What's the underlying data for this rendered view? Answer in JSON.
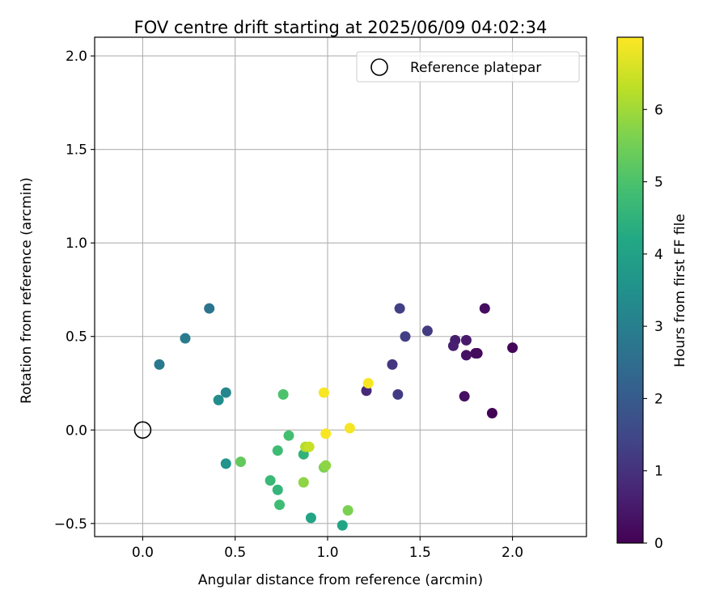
{
  "chart_data": {
    "type": "scatter",
    "title": "FOV centre drift starting at 2025/06/09 04:02:34",
    "xlabel": "Angular distance from reference (arcmin)",
    "ylabel": "Rotation from reference (arcmin)",
    "xlim": [
      -0.26,
      2.4
    ],
    "ylim": [
      -0.57,
      2.1
    ],
    "xticks": [
      "0.0",
      "0.5",
      "1.0",
      "1.5",
      "2.0"
    ],
    "xtick_values": [
      0.0,
      0.5,
      1.0,
      1.5,
      2.0
    ],
    "yticks": [
      "−0.5",
      "0.0",
      "0.5",
      "1.0",
      "1.5",
      "2.0"
    ],
    "ytick_values": [
      -0.5,
      0.0,
      0.5,
      1.0,
      1.5,
      2.0
    ],
    "grid": true,
    "legend": {
      "position": "top-right",
      "entries": [
        "Reference platepar"
      ]
    },
    "reference_point": {
      "x": 0.0,
      "y": 0.0
    },
    "colorbar": {
      "label": "Hours from first FF file",
      "colormap": "viridis",
      "range": [
        0,
        7
      ],
      "ticks": [
        "0",
        "1",
        "2",
        "3",
        "4",
        "5",
        "6"
      ],
      "tick_values": [
        0,
        1,
        2,
        3,
        4,
        5,
        6
      ]
    },
    "points": [
      {
        "x": 1.89,
        "y": 0.09,
        "c": 0.05
      },
      {
        "x": 2.0,
        "y": 0.44,
        "c": 0.1
      },
      {
        "x": 1.85,
        "y": 0.65,
        "c": 0.25
      },
      {
        "x": 1.81,
        "y": 0.41,
        "c": 0.15
      },
      {
        "x": 1.8,
        "y": 0.41,
        "c": 0.2
      },
      {
        "x": 1.74,
        "y": 0.18,
        "c": 0.3
      },
      {
        "x": 1.75,
        "y": 0.4,
        "c": 0.35
      },
      {
        "x": 1.75,
        "y": 0.48,
        "c": 0.5
      },
      {
        "x": 1.69,
        "y": 0.48,
        "c": 0.55
      },
      {
        "x": 1.68,
        "y": 0.45,
        "c": 0.6
      },
      {
        "x": 1.54,
        "y": 0.53,
        "c": 1.2
      },
      {
        "x": 1.42,
        "y": 0.5,
        "c": 1.3
      },
      {
        "x": 1.39,
        "y": 0.65,
        "c": 1.3
      },
      {
        "x": 1.35,
        "y": 0.35,
        "c": 1.1
      },
      {
        "x": 1.38,
        "y": 0.19,
        "c": 1.2
      },
      {
        "x": 1.21,
        "y": 0.21,
        "c": 0.8
      },
      {
        "x": 0.36,
        "y": 0.65,
        "c": 2.7
      },
      {
        "x": 0.23,
        "y": 0.49,
        "c": 2.9
      },
      {
        "x": 0.09,
        "y": 0.35,
        "c": 2.8
      },
      {
        "x": 0.45,
        "y": 0.2,
        "c": 3.2
      },
      {
        "x": 0.41,
        "y": 0.16,
        "c": 3.4
      },
      {
        "x": 0.45,
        "y": -0.18,
        "c": 3.6
      },
      {
        "x": 0.53,
        "y": -0.17,
        "c": 5.3
      },
      {
        "x": 0.69,
        "y": -0.27,
        "c": 4.7
      },
      {
        "x": 0.73,
        "y": -0.32,
        "c": 4.6
      },
      {
        "x": 0.74,
        "y": -0.4,
        "c": 4.8
      },
      {
        "x": 0.73,
        "y": -0.11,
        "c": 4.8
      },
      {
        "x": 0.79,
        "y": -0.03,
        "c": 4.9
      },
      {
        "x": 0.76,
        "y": 0.19,
        "c": 5.0
      },
      {
        "x": 0.87,
        "y": -0.13,
        "c": 4.5
      },
      {
        "x": 0.91,
        "y": -0.47,
        "c": 4.1
      },
      {
        "x": 0.87,
        "y": -0.28,
        "c": 5.8
      },
      {
        "x": 0.88,
        "y": -0.09,
        "c": 6.2
      },
      {
        "x": 0.9,
        "y": -0.09,
        "c": 6.4
      },
      {
        "x": 0.98,
        "y": -0.2,
        "c": 5.6
      },
      {
        "x": 0.99,
        "y": -0.19,
        "c": 5.8
      },
      {
        "x": 0.98,
        "y": 0.2,
        "c": 6.95
      },
      {
        "x": 0.99,
        "y": -0.02,
        "c": 6.95
      },
      {
        "x": 1.12,
        "y": 0.01,
        "c": 6.9
      },
      {
        "x": 1.22,
        "y": 0.25,
        "c": 6.95
      },
      {
        "x": 1.08,
        "y": -0.51,
        "c": 4.1
      },
      {
        "x": 1.11,
        "y": -0.43,
        "c": 5.6
      }
    ]
  }
}
